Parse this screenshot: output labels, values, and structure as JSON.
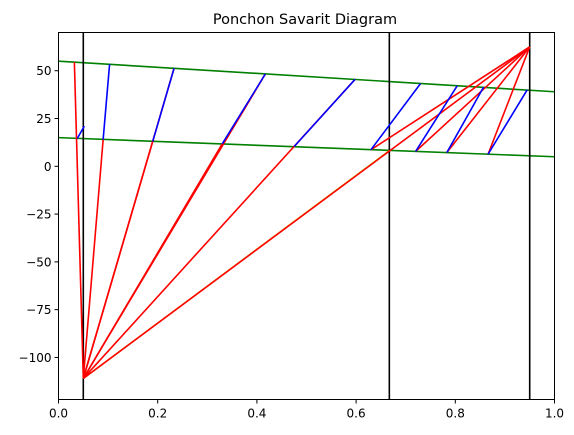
{
  "chart_data": {
    "type": "line",
    "title": "Ponchon Savarit Diagram",
    "xlabel": "",
    "ylabel": "",
    "xlim": [
      0.0,
      1.0
    ],
    "ylim": [
      -122,
      70
    ],
    "grid": false,
    "legend": "none",
    "x_ticks": [
      {
        "value": 0.0,
        "label": "0.0"
      },
      {
        "value": 0.2,
        "label": "0.2"
      },
      {
        "value": 0.4,
        "label": "0.4"
      },
      {
        "value": 0.6,
        "label": "0.6"
      },
      {
        "value": 0.8,
        "label": "0.8"
      },
      {
        "value": 1.0,
        "label": "1.0"
      }
    ],
    "y_ticks": [
      {
        "value": 50,
        "label": "50"
      },
      {
        "value": 25,
        "label": "25"
      },
      {
        "value": 0,
        "label": "0"
      },
      {
        "value": -25,
        "label": "−25"
      },
      {
        "value": -50,
        "label": "−50"
      },
      {
        "value": -75,
        "label": "−75"
      },
      {
        "value": -100,
        "label": "−100"
      }
    ],
    "colors": {
      "enthalpy_curves": "#008000",
      "vertical_lines": "#000000",
      "tie_lines": "#0000ff",
      "operating_lines": "#ff0000",
      "feed_line": "#bfbf00"
    },
    "enthalpy_curves": [
      {
        "x": [
          0.0,
          1.0
        ],
        "y": [
          55.0,
          39.0
        ]
      },
      {
        "x": [
          0.0,
          1.0
        ],
        "y": [
          15.0,
          5.0
        ]
      }
    ],
    "vertical_lines": [
      0.05,
      0.667,
      0.95
    ],
    "tie_lines": [
      {
        "x": [
          0.038,
          0.052
        ],
        "y": [
          14.6,
          21.0
        ]
      },
      {
        "x": [
          0.09,
          0.103
        ],
        "y": [
          14.0,
          53.4
        ]
      },
      {
        "x": [
          0.19,
          0.233
        ],
        "y": [
          13.0,
          51.3
        ]
      },
      {
        "x": [
          0.33,
          0.417
        ],
        "y": [
          11.7,
          48.3
        ]
      },
      {
        "x": [
          0.475,
          0.598
        ],
        "y": [
          10.3,
          45.5
        ]
      },
      {
        "x": [
          0.63,
          0.73
        ],
        "y": [
          8.7,
          43.3
        ]
      },
      {
        "x": [
          0.72,
          0.804
        ],
        "y": [
          7.8,
          42.2
        ]
      },
      {
        "x": [
          0.783,
          0.857
        ],
        "y": [
          7.2,
          41.4
        ]
      },
      {
        "x": [
          0.866,
          0.945
        ],
        "y": [
          6.3,
          40.0
        ]
      }
    ],
    "operating_lines": [
      {
        "x": [
          0.05,
          0.032
        ],
        "y": [
          -111.0,
          54.5
        ]
      },
      {
        "x": [
          0.05,
          0.09
        ],
        "y": [
          -111.0,
          14.0
        ]
      },
      {
        "x": [
          0.05,
          0.19
        ],
        "y": [
          -111.0,
          13.0
        ]
      },
      {
        "x": [
          0.05,
          0.33
        ],
        "y": [
          -111.0,
          11.7
        ]
      },
      {
        "x": [
          0.05,
          0.233
        ],
        "y": [
          -111.0,
          51.3
        ]
      },
      {
        "x": [
          0.05,
          0.417
        ],
        "y": [
          -111.0,
          48.3
        ]
      },
      {
        "x": [
          0.05,
          0.598
        ],
        "y": [
          -111.0,
          45.5
        ]
      },
      {
        "x": [
          0.05,
          0.95
        ],
        "y": [
          -111.0,
          62.5
        ]
      },
      {
        "x": [
          0.95,
          0.63
        ],
        "y": [
          62.5,
          8.7
        ]
      },
      {
        "x": [
          0.95,
          0.72
        ],
        "y": [
          62.5,
          7.8
        ]
      },
      {
        "x": [
          0.95,
          0.783
        ],
        "y": [
          62.5,
          7.2
        ]
      },
      {
        "x": [
          0.95,
          0.866
        ],
        "y": [
          62.5,
          6.3
        ]
      }
    ],
    "feed_line": {
      "x": [
        0.05,
        0.667
      ],
      "y": [
        -111.0,
        8.2
      ]
    }
  }
}
